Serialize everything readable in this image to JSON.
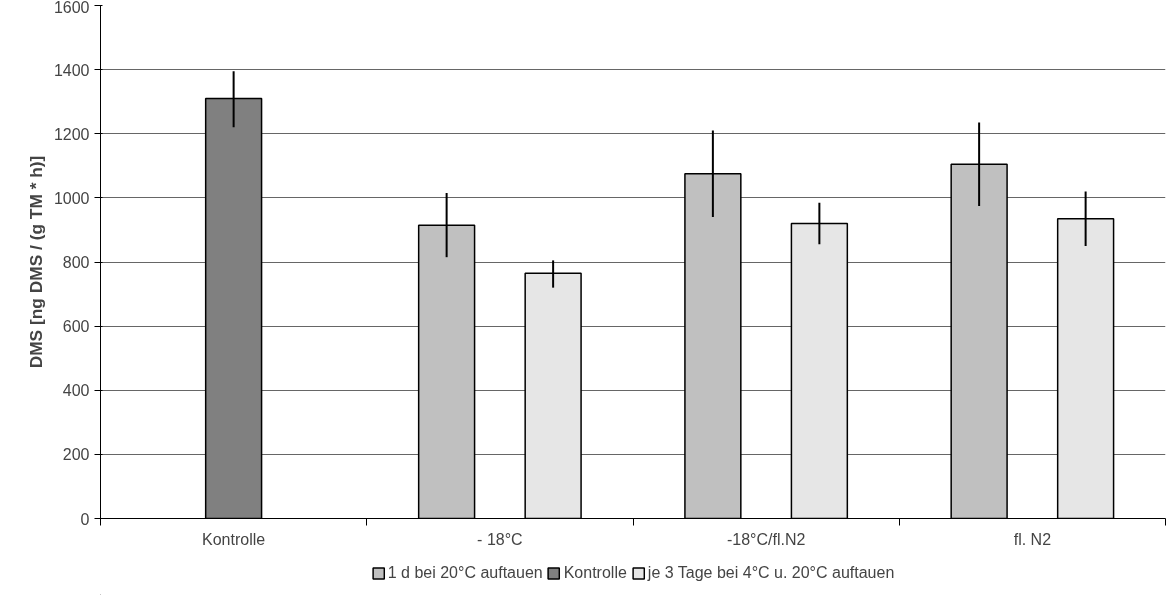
{
  "chart_data": {
    "type": "bar",
    "ylabel": "DMS [ng DMS / (g TM * h)]",
    "categories": [
      "Kontrolle",
      "- 18°C",
      "-18°C/fl.N2",
      "fl. N2"
    ],
    "series": [
      {
        "name": "1 d bei 20°C auftauen",
        "color": "#c0c0c0",
        "values": [
          null,
          915,
          1075,
          1105
        ],
        "errors": [
          null,
          [
            815,
            1015
          ],
          [
            940,
            1210
          ],
          [
            975,
            1235
          ]
        ]
      },
      {
        "name": "Kontrolle",
        "color": "#808080",
        "values": [
          1310,
          null,
          null,
          null
        ],
        "errors": [
          [
            1220,
            1395
          ],
          null,
          null,
          null
        ]
      },
      {
        "name": "je 3 Tage bei 4°C u. 20°C auftauen",
        "color": "#e6e6e6",
        "values": [
          null,
          765,
          920,
          935
        ],
        "errors": [
          null,
          [
            720,
            805
          ],
          [
            855,
            985
          ],
          [
            850,
            1020
          ]
        ]
      }
    ],
    "ylim": [
      0,
      1600
    ],
    "yticks": [
      0,
      200,
      400,
      600,
      800,
      1000,
      1200,
      1400,
      1600
    ],
    "grid": "y",
    "legend": "bottom"
  }
}
